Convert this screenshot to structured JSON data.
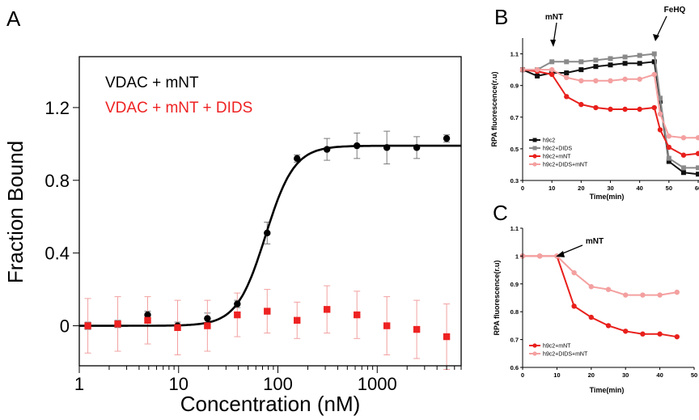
{
  "panel_labels": {
    "a": "A",
    "b": "B",
    "c": "C"
  },
  "chart_data": [
    {
      "panel": "A",
      "type": "scatter",
      "xlabel": "Concentration (nM)",
      "ylabel": "Fraction Bound",
      "xscale": "log",
      "xlim": [
        1,
        7000
      ],
      "ylim": [
        -0.22,
        1.48
      ],
      "xticks": [
        1,
        10,
        100,
        1000
      ],
      "xtick_labels": [
        "1",
        "10",
        "100",
        "1000"
      ],
      "yticks": [
        0,
        0.4,
        0.8,
        1.2
      ],
      "ytick_labels": [
        "0",
        "0.4",
        "0.8",
        "1.2"
      ],
      "legend_position": "top-left",
      "series": [
        {
          "name": "VDAC + mNT",
          "color": "#000000",
          "marker": "circle",
          "x": [
            1.22,
            2.44,
            4.88,
            9.77,
            19.5,
            39,
            78,
            156,
            312,
            625,
            1250,
            2500,
            5000
          ],
          "y": [
            0.0,
            0.01,
            0.06,
            0.0,
            0.04,
            0.12,
            0.51,
            0.92,
            0.97,
            0.99,
            0.98,
            0.98,
            1.03
          ],
          "err": [
            0.02,
            0.02,
            0.02,
            0.02,
            0.03,
            0.02,
            0.06,
            0.02,
            0.06,
            0.07,
            0.09,
            0.06,
            0.02
          ]
        },
        {
          "name": "VDAC + mNT + DIDS",
          "color": "#ee2222",
          "marker": "square",
          "x": [
            1.22,
            2.44,
            4.88,
            9.77,
            19.5,
            39,
            78,
            156,
            312,
            625,
            1250,
            2500,
            5000
          ],
          "y": [
            0.0,
            0.01,
            0.03,
            -0.01,
            0.0,
            0.06,
            0.08,
            0.03,
            0.09,
            0.06,
            0.0,
            -0.02,
            -0.06
          ],
          "err": [
            0.15,
            0.15,
            0.13,
            0.15,
            0.14,
            0.12,
            0.12,
            0.1,
            0.13,
            0.13,
            0.16,
            0.16,
            0.18
          ]
        }
      ],
      "fit_curves": [
        {
          "model": "hill",
          "color": "#000000",
          "bottom": 0.0,
          "top": 0.99,
          "ec50": 75,
          "hill": 3.0
        }
      ]
    },
    {
      "panel": "B",
      "type": "line",
      "xlabel": "Time(min)",
      "ylabel": "RPA fluorescence(r.u)",
      "xlim": [
        0,
        60
      ],
      "ylim": [
        0.3,
        1.2
      ],
      "xticks": [
        0,
        10,
        20,
        30,
        40,
        50,
        60
      ],
      "yticks": [
        0.3,
        0.5,
        0.7,
        0.9,
        1.1
      ],
      "legend_position": "bottom-left",
      "annotations": [
        {
          "text": "mNT",
          "x": 10
        },
        {
          "text": "FeHQ",
          "x": 46
        }
      ],
      "x": [
        0,
        5,
        10,
        15,
        20,
        25,
        30,
        35,
        40,
        45,
        47,
        50,
        55,
        60
      ],
      "series": [
        {
          "name": "h9c2",
          "color": "#111111",
          "marker": "square",
          "values": [
            1.0,
            0.96,
            0.98,
            0.98,
            1.0,
            1.02,
            1.03,
            1.04,
            1.04,
            1.05,
            0.8,
            0.42,
            0.35,
            0.34
          ]
        },
        {
          "name": "h9c2+DIDS",
          "color": "#8a8a8a",
          "marker": "square",
          "values": [
            1.0,
            1.0,
            1.05,
            1.05,
            1.05,
            1.06,
            1.07,
            1.08,
            1.09,
            1.1,
            0.82,
            0.44,
            0.38,
            0.38
          ]
        },
        {
          "name": "h9c2+mNT",
          "color": "#e8201c",
          "marker": "circle",
          "values": [
            1.0,
            0.99,
            0.97,
            0.83,
            0.78,
            0.76,
            0.75,
            0.75,
            0.75,
            0.76,
            0.62,
            0.51,
            0.46,
            0.47
          ]
        },
        {
          "name": "h9c2+DIDS+mNT",
          "color": "#f4a0a0",
          "marker": "circle",
          "values": [
            1.0,
            1.0,
            1.0,
            0.95,
            0.93,
            0.93,
            0.93,
            0.94,
            0.94,
            0.97,
            0.72,
            0.58,
            0.57,
            0.57
          ]
        }
      ]
    },
    {
      "panel": "C",
      "type": "line",
      "xlabel": "Time(min)",
      "ylabel": "RPA fluorescence(r.u)",
      "xlim": [
        0,
        50
      ],
      "ylim": [
        0.6,
        1.1
      ],
      "xticks": [
        0,
        10,
        20,
        30,
        40,
        50
      ],
      "yticks": [
        0.6,
        0.7,
        0.8,
        0.9,
        1.0,
        1.1
      ],
      "ytick_labels": [
        "0.6",
        "0.7",
        "0.8",
        "0.9",
        "1",
        "1.1"
      ],
      "legend_position": "bottom-left",
      "annotations": [
        {
          "text": "mNT",
          "x": 10
        }
      ],
      "x": [
        0,
        5,
        10,
        15,
        20,
        25,
        30,
        35,
        40,
        45
      ],
      "series": [
        {
          "name": "h9c2+mNT",
          "color": "#e8201c",
          "marker": "circle",
          "values": [
            1.0,
            1.0,
            1.0,
            0.82,
            0.78,
            0.75,
            0.73,
            0.72,
            0.72,
            0.71
          ]
        },
        {
          "name": "h9c2+DIDS+mNT",
          "color": "#f4a0a0",
          "marker": "circle",
          "values": [
            1.0,
            1.0,
            1.0,
            0.94,
            0.89,
            0.88,
            0.86,
            0.86,
            0.86,
            0.87
          ]
        }
      ]
    }
  ]
}
